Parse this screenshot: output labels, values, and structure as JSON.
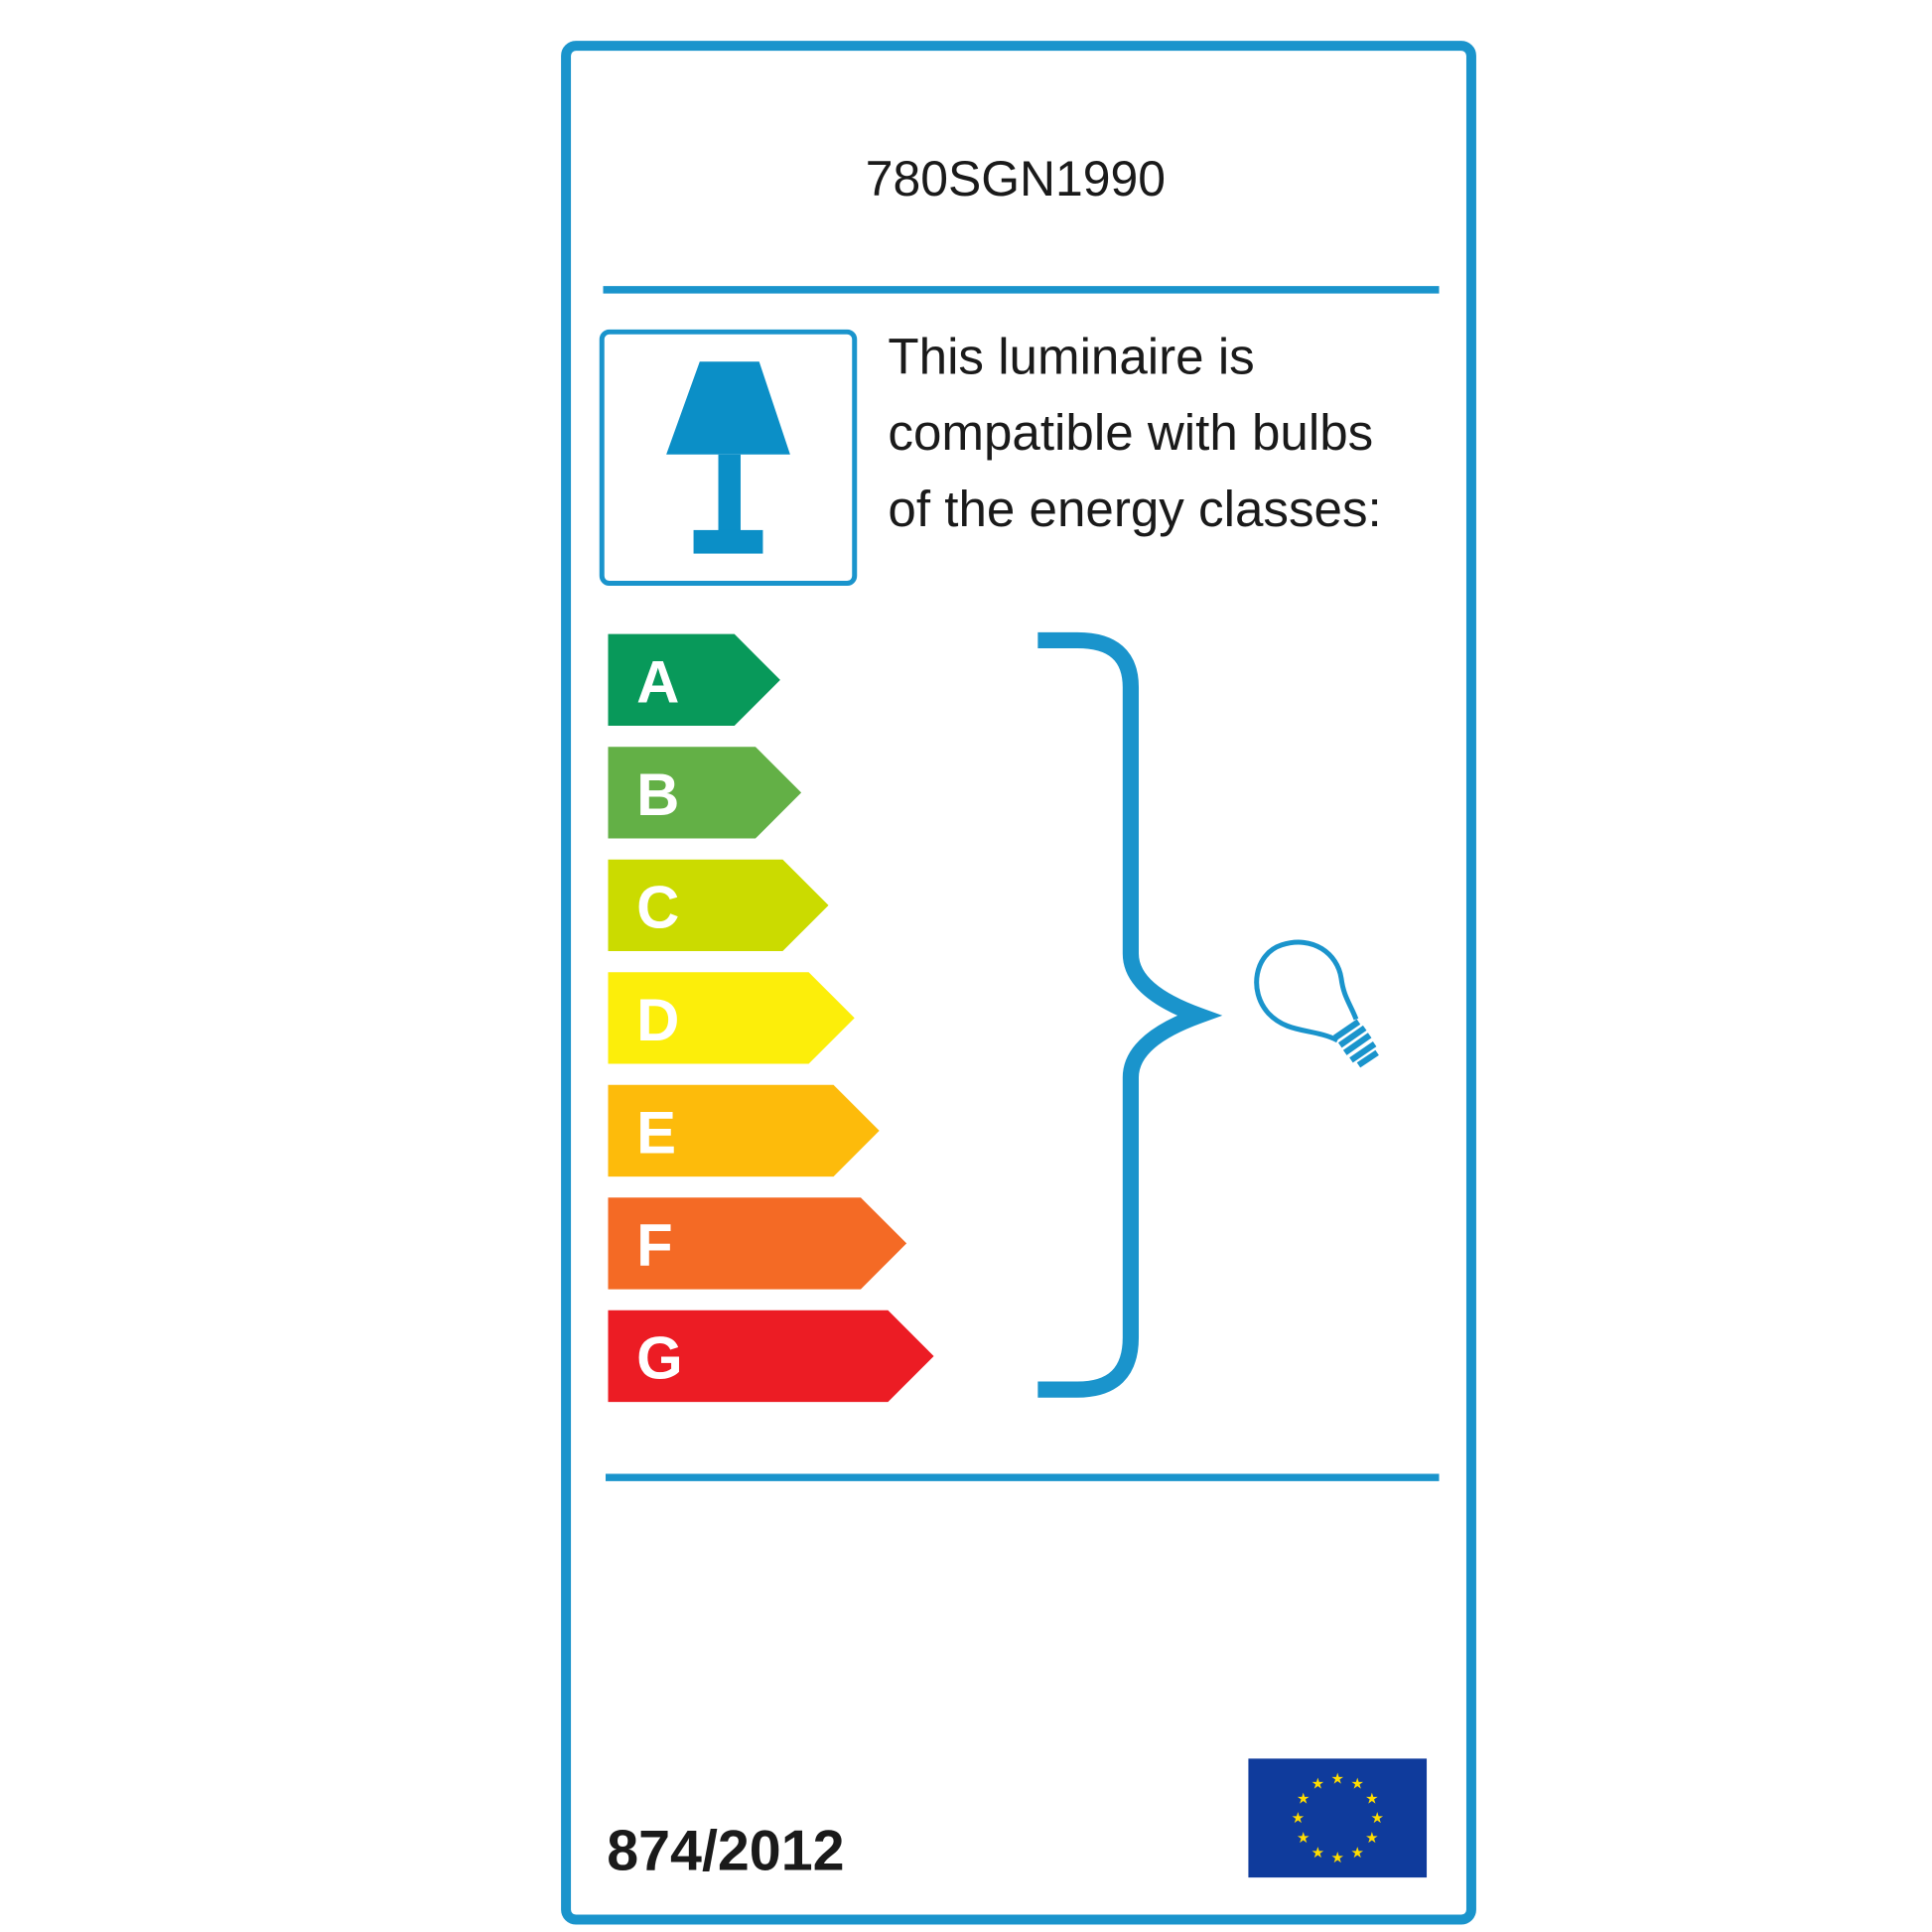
{
  "label": {
    "model": "780SGN1990",
    "compatibility_text": [
      "This luminaire is",
      "compatible with bulbs",
      "of the energy classes:"
    ],
    "regulation": "874/2012",
    "energy_classes": [
      {
        "letter": "A",
        "color": "#08995a"
      },
      {
        "letter": "B",
        "color": "#63b046"
      },
      {
        "letter": "C",
        "color": "#cbdb00"
      },
      {
        "letter": "D",
        "color": "#fcee0a"
      },
      {
        "letter": "E",
        "color": "#fdbb0b"
      },
      {
        "letter": "F",
        "color": "#f46a25"
      },
      {
        "letter": "G",
        "color": "#ec1c24"
      }
    ],
    "icons": [
      "table-lamp-icon",
      "light-bulb-icon",
      "eu-flag-icon"
    ],
    "colors": {
      "frame": "#1a94cc",
      "eu_blue": "#0f3b9c",
      "eu_star": "#ffdd00"
    }
  }
}
